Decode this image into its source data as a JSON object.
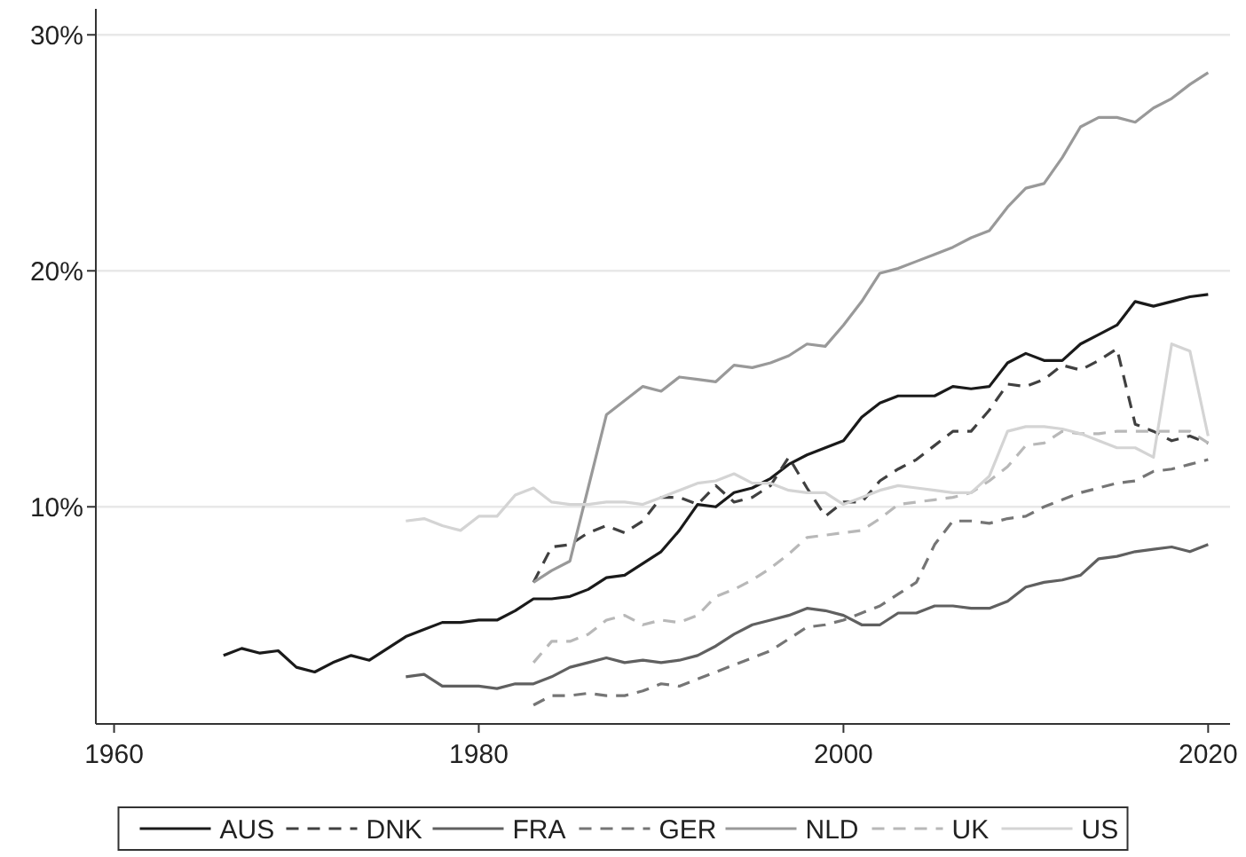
{
  "chart_data": {
    "type": "line",
    "xlim": [
      1959,
      2021.2
    ],
    "xticks": [
      1960,
      1980,
      2000,
      2020
    ],
    "ylim": [
      0.8,
      31.1
    ],
    "yticks": [
      {
        "value": 10,
        "label": "10%"
      },
      {
        "value": 20,
        "label": "20%"
      },
      {
        "value": 30,
        "label": "30%"
      }
    ],
    "grid": "y",
    "legend": "bottom",
    "marker": "none",
    "series": [
      {
        "name": "AUS",
        "color": "#1a1a1a",
        "line_style": "solid",
        "x": [
          1966,
          1967,
          1968,
          1969,
          1970,
          1971,
          1972,
          1973,
          1974,
          1975,
          1976,
          1977,
          1978,
          1979,
          1980,
          1981,
          1982,
          1983,
          1984,
          1985,
          1986,
          1987,
          1988,
          1989,
          1990,
          1991,
          1992,
          1993,
          1994,
          1995,
          1996,
          1997,
          1998,
          1999,
          2000,
          2001,
          2002,
          2003,
          2004,
          2005,
          2006,
          2007,
          2008,
          2009,
          2010,
          2011,
          2012,
          2013,
          2014,
          2015,
          2016,
          2017,
          2018,
          2019,
          2020
        ],
        "values": [
          3.7,
          4.0,
          3.8,
          3.9,
          3.2,
          3.0,
          3.4,
          3.7,
          3.5,
          4.0,
          4.5,
          4.8,
          5.1,
          5.1,
          5.2,
          5.2,
          5.6,
          6.1,
          6.1,
          6.2,
          6.5,
          7.0,
          7.1,
          7.6,
          8.1,
          9.0,
          10.1,
          10.0,
          10.6,
          10.8,
          11.2,
          11.8,
          12.2,
          12.5,
          12.8,
          13.8,
          14.4,
          14.7,
          14.7,
          14.7,
          15.1,
          15.0,
          15.1,
          16.1,
          16.5,
          16.2,
          16.2,
          16.9,
          17.3,
          17.7,
          18.7,
          18.5,
          18.7,
          18.9,
          19.0
        ]
      },
      {
        "name": "DNK",
        "color": "#404040",
        "line_style": "dashed",
        "x": [
          1983,
          1984,
          1985,
          1986,
          1987,
          1988,
          1989,
          1990,
          1991,
          1992,
          1993,
          1994,
          1995,
          1996,
          1997,
          1998,
          1999,
          2000,
          2001,
          2002,
          2003,
          2004,
          2005,
          2006,
          2007,
          2008,
          2009,
          2010,
          2011,
          2012,
          2013,
          2014,
          2015,
          2016,
          2017,
          2018,
          2019,
          2020
        ],
        "values": [
          6.8,
          8.3,
          8.4,
          8.9,
          9.2,
          8.9,
          9.4,
          10.4,
          10.4,
          10.1,
          10.9,
          10.2,
          10.4,
          10.9,
          12.1,
          10.8,
          9.6,
          10.2,
          10.2,
          11.1,
          11.6,
          12.0,
          12.6,
          13.2,
          13.2,
          14.1,
          15.2,
          15.1,
          15.4,
          16.0,
          15.8,
          16.2,
          16.7,
          13.5,
          13.2,
          12.8,
          13.0,
          12.7
        ]
      },
      {
        "name": "FRA",
        "color": "#606060",
        "line_style": "solid",
        "x": [
          1976,
          1977,
          1978,
          1979,
          1980,
          1981,
          1982,
          1983,
          1984,
          1985,
          1986,
          1987,
          1988,
          1989,
          1990,
          1991,
          1992,
          1993,
          1994,
          1995,
          1996,
          1997,
          1998,
          1999,
          2000,
          2001,
          2002,
          2003,
          2004,
          2005,
          2006,
          2007,
          2008,
          2009,
          2010,
          2011,
          2012,
          2013,
          2014,
          2015,
          2016,
          2017,
          2018,
          2019,
          2020
        ],
        "values": [
          2.8,
          2.9,
          2.4,
          2.4,
          2.4,
          2.3,
          2.5,
          2.5,
          2.8,
          3.2,
          3.4,
          3.6,
          3.4,
          3.5,
          3.4,
          3.5,
          3.7,
          4.1,
          4.6,
          5.0,
          5.2,
          5.4,
          5.7,
          5.6,
          5.4,
          5.0,
          5.0,
          5.5,
          5.5,
          5.8,
          5.8,
          5.7,
          5.7,
          6.0,
          6.6,
          6.8,
          6.9,
          7.1,
          7.8,
          7.9,
          8.1,
          8.2,
          8.3,
          8.1,
          8.4
        ]
      },
      {
        "name": "GER",
        "color": "#757575",
        "line_style": "dashed",
        "x": [
          1983,
          1984,
          1985,
          1986,
          1987,
          1988,
          1989,
          1990,
          1991,
          1992,
          1993,
          1994,
          1995,
          1996,
          1997,
          1998,
          1999,
          2000,
          2001,
          2002,
          2003,
          2004,
          2005,
          2006,
          2007,
          2008,
          2009,
          2010,
          2011,
          2012,
          2013,
          2014,
          2015,
          2016,
          2017,
          2018,
          2019,
          2020
        ],
        "values": [
          1.6,
          2.0,
          2.0,
          2.1,
          2.0,
          2.0,
          2.2,
          2.5,
          2.4,
          2.7,
          3.0,
          3.3,
          3.6,
          3.9,
          4.4,
          4.9,
          5.0,
          5.2,
          5.5,
          5.8,
          6.3,
          6.8,
          8.4,
          9.4,
          9.4,
          9.3,
          9.5,
          9.6,
          10.0,
          10.3,
          10.6,
          10.8,
          11.0,
          11.1,
          11.5,
          11.6,
          11.8,
          12.0
        ]
      },
      {
        "name": "NLD",
        "color": "#999999",
        "line_style": "solid",
        "x": [
          1983,
          1984,
          1985,
          1986,
          1987,
          1988,
          1989,
          1990,
          1991,
          1992,
          1993,
          1994,
          1995,
          1996,
          1997,
          1998,
          1999,
          2000,
          2001,
          2002,
          2003,
          2004,
          2005,
          2006,
          2007,
          2008,
          2009,
          2010,
          2011,
          2012,
          2013,
          2014,
          2015,
          2016,
          2017,
          2018,
          2019,
          2020
        ],
        "values": [
          6.8,
          7.3,
          7.7,
          10.8,
          13.9,
          14.5,
          15.1,
          14.9,
          15.5,
          15.4,
          15.3,
          16.0,
          15.9,
          16.1,
          16.4,
          16.9,
          16.8,
          17.7,
          18.7,
          19.9,
          20.1,
          20.4,
          20.7,
          21.0,
          21.4,
          21.7,
          22.7,
          23.5,
          23.7,
          24.8,
          26.1,
          26.5,
          26.5,
          26.3,
          26.9,
          27.3,
          27.9,
          28.4
        ]
      },
      {
        "name": "UK",
        "color": "#b8b8b8",
        "line_style": "dashed",
        "x": [
          1983,
          1984,
          1985,
          1986,
          1987,
          1988,
          1989,
          1990,
          1991,
          1992,
          1993,
          1994,
          1995,
          1996,
          1997,
          1998,
          1999,
          2000,
          2001,
          2002,
          2003,
          2004,
          2005,
          2006,
          2007,
          2008,
          2009,
          2010,
          2011,
          2012,
          2013,
          2014,
          2015,
          2016,
          2017,
          2018,
          2019,
          2020
        ],
        "values": [
          3.4,
          4.3,
          4.3,
          4.6,
          5.2,
          5.4,
          5.0,
          5.2,
          5.1,
          5.4,
          6.2,
          6.5,
          6.9,
          7.4,
          8.0,
          8.7,
          8.8,
          8.9,
          9.0,
          9.5,
          10.1,
          10.2,
          10.3,
          10.4,
          10.6,
          11.1,
          11.7,
          12.6,
          12.7,
          13.2,
          13.1,
          13.1,
          13.2,
          13.2,
          13.2,
          13.2,
          13.2,
          12.7
        ]
      },
      {
        "name": "US",
        "color": "#d4d4d4",
        "line_style": "solid",
        "x": [
          1976,
          1977,
          1978,
          1979,
          1980,
          1981,
          1982,
          1983,
          1984,
          1985,
          1986,
          1987,
          1988,
          1989,
          1990,
          1991,
          1992,
          1993,
          1994,
          1995,
          1996,
          1997,
          1998,
          1999,
          2000,
          2001,
          2002,
          2003,
          2004,
          2005,
          2006,
          2007,
          2008,
          2009,
          2010,
          2011,
          2012,
          2013,
          2014,
          2015,
          2016,
          2017,
          2018,
          2019,
          2020
        ],
        "values": [
          9.4,
          9.5,
          9.2,
          9.0,
          9.6,
          9.6,
          10.5,
          10.8,
          10.2,
          10.1,
          10.1,
          10.2,
          10.2,
          10.1,
          10.4,
          10.7,
          11.0,
          11.1,
          11.4,
          11.0,
          11.0,
          10.7,
          10.6,
          10.6,
          10.1,
          10.4,
          10.7,
          10.9,
          10.8,
          10.7,
          10.6,
          10.6,
          11.3,
          13.2,
          13.4,
          13.4,
          13.3,
          13.1,
          12.8,
          12.5,
          12.5,
          12.1,
          16.9,
          16.6,
          13.0
        ]
      }
    ]
  }
}
